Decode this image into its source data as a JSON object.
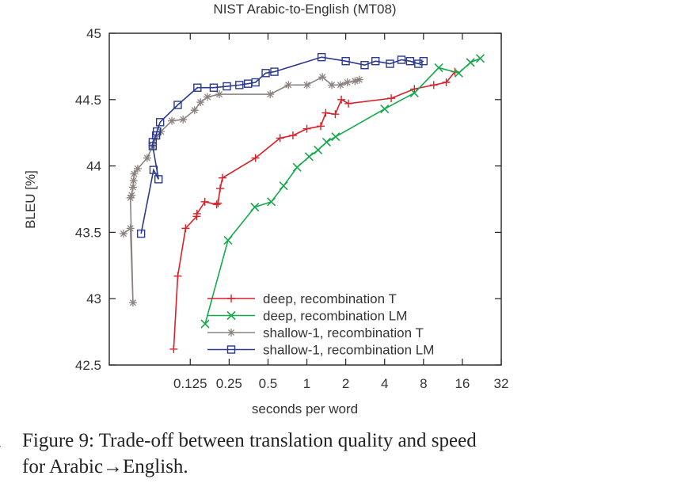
{
  "chart_data": {
    "type": "line",
    "title": "NIST Arabic-to-English (MT08)",
    "xlabel": "seconds per word",
    "ylabel": "BLEU [%]",
    "x_scale": "log2",
    "xlim": [
      0.0295,
      32
    ],
    "ylim": [
      42.5,
      45
    ],
    "x_ticks": [
      0.125,
      0.25,
      0.5,
      1,
      2,
      4,
      8,
      16,
      32
    ],
    "x_tick_labels": [
      "0.125",
      "0.25",
      "0.5",
      "1",
      "2",
      "4",
      "8",
      "16",
      "32"
    ],
    "y_ticks": [
      42.5,
      43,
      43.5,
      44,
      44.5,
      45
    ],
    "y_tick_labels": [
      "42.5",
      "43",
      "43.5",
      "44",
      "44.5",
      "45"
    ],
    "legend_position": "bottom-right",
    "series": [
      {
        "name": "deep, recombination T",
        "color": "#d9212a",
        "marker": "plus",
        "points": [
          [
            0.093,
            42.62
          ],
          [
            0.1,
            43.17
          ],
          [
            0.115,
            43.53
          ],
          [
            0.14,
            43.62
          ],
          [
            0.141,
            43.64
          ],
          [
            0.162,
            43.73
          ],
          [
            0.2,
            43.71
          ],
          [
            0.205,
            43.72
          ],
          [
            0.213,
            43.83
          ],
          [
            0.222,
            43.91
          ],
          [
            0.4,
            44.06
          ],
          [
            0.62,
            44.21
          ],
          [
            0.78,
            44.23
          ],
          [
            1.0,
            44.28
          ],
          [
            1.28,
            44.3
          ],
          [
            1.4,
            44.4
          ],
          [
            1.66,
            44.39
          ],
          [
            1.85,
            44.5
          ],
          [
            2.1,
            44.47
          ],
          [
            4.5,
            44.51
          ],
          [
            6.8,
            44.58
          ],
          [
            9.6,
            44.61
          ],
          [
            12.0,
            44.63
          ],
          [
            14.0,
            44.71
          ]
        ]
      },
      {
        "name": "deep, recombination LM",
        "color": "#17a84b",
        "marker": "cross",
        "points": [
          [
            0.163,
            42.81
          ],
          [
            0.245,
            43.44
          ],
          [
            0.395,
            43.69
          ],
          [
            0.53,
            43.73
          ],
          [
            0.66,
            43.85
          ],
          [
            0.84,
            43.99
          ],
          [
            1.04,
            44.07
          ],
          [
            1.22,
            44.12
          ],
          [
            1.42,
            44.18
          ],
          [
            1.67,
            44.22
          ],
          [
            4.0,
            44.43
          ],
          [
            6.8,
            44.55
          ],
          [
            10.5,
            44.74
          ],
          [
            15.0,
            44.7
          ],
          [
            18.5,
            44.78
          ],
          [
            22.0,
            44.81
          ]
        ]
      },
      {
        "name": "shallow-1, recombination T",
        "color": "#8c8380",
        "marker": "star",
        "points": [
          [
            0.038,
            43.49
          ],
          [
            0.043,
            43.53
          ],
          [
            0.045,
            42.97
          ],
          [
            0.043,
            43.76
          ],
          [
            0.044,
            43.78
          ],
          [
            0.045,
            43.84
          ],
          [
            0.0455,
            43.89
          ],
          [
            0.046,
            43.94
          ],
          [
            0.049,
            43.98
          ],
          [
            0.058,
            44.06
          ],
          [
            0.064,
            44.15
          ],
          [
            0.068,
            44.22
          ],
          [
            0.074,
            44.26
          ],
          [
            0.09,
            44.34
          ],
          [
            0.11,
            44.35
          ],
          [
            0.135,
            44.42
          ],
          [
            0.15,
            44.48
          ],
          [
            0.17,
            44.52
          ],
          [
            0.21,
            44.54
          ],
          [
            0.52,
            44.54
          ],
          [
            0.72,
            44.61
          ],
          [
            1.0,
            44.61
          ],
          [
            1.32,
            44.67
          ],
          [
            1.56,
            44.61
          ],
          [
            1.82,
            44.61
          ],
          [
            2.06,
            44.63
          ],
          [
            2.36,
            44.64
          ],
          [
            2.55,
            44.65
          ]
        ]
      },
      {
        "name": "shallow-1, recombination LM",
        "color": "#2b3a8f",
        "marker": "square",
        "points": [
          [
            0.052,
            43.49
          ],
          [
            0.065,
            43.97
          ],
          [
            0.071,
            43.9
          ],
          [
            0.064,
            44.15
          ],
          [
            0.064,
            44.18
          ],
          [
            0.068,
            44.23
          ],
          [
            0.069,
            44.26
          ],
          [
            0.073,
            44.33
          ],
          [
            0.1,
            44.46
          ],
          [
            0.142,
            44.59
          ],
          [
            0.19,
            44.59
          ],
          [
            0.24,
            44.6
          ],
          [
            0.3,
            44.61
          ],
          [
            0.35,
            44.62
          ],
          [
            0.4,
            44.63
          ],
          [
            0.48,
            44.7
          ],
          [
            0.56,
            44.71
          ],
          [
            1.3,
            44.82
          ],
          [
            2.0,
            44.79
          ],
          [
            2.8,
            44.76
          ],
          [
            3.4,
            44.79
          ],
          [
            4.4,
            44.77
          ],
          [
            5.4,
            44.8
          ],
          [
            6.3,
            44.79
          ],
          [
            7.3,
            44.77
          ],
          [
            8.0,
            44.79
          ]
        ]
      }
    ]
  },
  "caption": {
    "line_marker": "1",
    "line1": "Figure 9: Trade-off between translation quality and speed",
    "line2": "for Arabic→English."
  }
}
